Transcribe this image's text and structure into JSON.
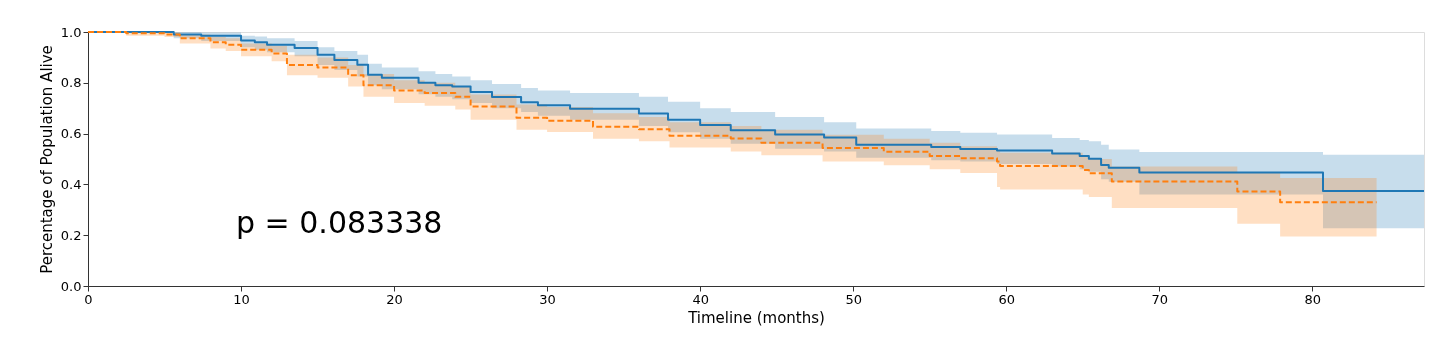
{
  "chart_data": {
    "type": "step",
    "xlabel": "Timeline (months)",
    "ylabel": "Percentage of Population Alive",
    "annotations": [
      "p = 0.083338"
    ],
    "xlim": [
      0,
      87.3
    ],
    "xticks": [
      0,
      10,
      20,
      30,
      40,
      50,
      60,
      70,
      80
    ],
    "ylim": [
      0,
      1
    ],
    "yticks": [
      {
        "value": 0,
        "label": "0.0"
      },
      {
        "value": 0.2,
        "label": "0.2"
      },
      {
        "value": 0.4,
        "label": "0.4"
      },
      {
        "value": 0.6,
        "label": "0.6"
      },
      {
        "value": 0.8,
        "label": "0.8"
      },
      {
        "value": 1,
        "label": "1.0"
      }
    ],
    "grid": false,
    "series": [
      {
        "color": "#1f77b4",
        "line_style": "solid",
        "x": [
          0,
          5.6,
          7.4,
          10,
          10.9,
          11.7,
          13.5,
          15,
          16.1,
          17.6,
          18.3,
          19.2,
          21.6,
          22.7,
          23.8,
          25,
          26.4,
          28.3,
          29.4,
          31.5,
          36,
          37.9,
          40,
          42,
          44.9,
          48.1,
          50.2,
          55.1,
          57,
          59.4,
          63,
          64.8,
          65.4,
          66.2,
          66.7,
          68.7,
          80.7,
          87.3
        ],
        "values": [
          1.0,
          0.99,
          0.985,
          0.967,
          0.96,
          0.95,
          0.937,
          0.91,
          0.89,
          0.871,
          0.832,
          0.82,
          0.8,
          0.79,
          0.785,
          0.764,
          0.744,
          0.723,
          0.712,
          0.698,
          0.679,
          0.655,
          0.634,
          0.613,
          0.596,
          0.585,
          0.556,
          0.547,
          0.539,
          0.533,
          0.522,
          0.512,
          0.501,
          0.476,
          0.466,
          0.447,
          0.374,
          0.374
        ],
        "upper": [
          1.0,
          1.0,
          0.998,
          0.985,
          0.982,
          0.975,
          0.965,
          0.94,
          0.925,
          0.91,
          0.875,
          0.86,
          0.845,
          0.835,
          0.825,
          0.81,
          0.795,
          0.78,
          0.77,
          0.76,
          0.745,
          0.725,
          0.7,
          0.685,
          0.665,
          0.645,
          0.62,
          0.61,
          0.603,
          0.596,
          0.583,
          0.575,
          0.57,
          0.556,
          0.537,
          0.528,
          0.517,
          0.517
        ],
        "lower": [
          1.0,
          0.975,
          0.965,
          0.94,
          0.93,
          0.92,
          0.905,
          0.87,
          0.85,
          0.825,
          0.79,
          0.775,
          0.755,
          0.745,
          0.735,
          0.72,
          0.7,
          0.685,
          0.67,
          0.655,
          0.63,
          0.605,
          0.58,
          0.56,
          0.54,
          0.53,
          0.505,
          0.495,
          0.49,
          0.48,
          0.47,
          0.46,
          0.45,
          0.42,
          0.41,
          0.36,
          0.227,
          0.227
        ]
      },
      {
        "color": "#ff7f0e",
        "line_style": "dashed",
        "x": [
          0,
          2.5,
          5,
          6,
          8,
          9,
          10,
          12,
          13,
          15,
          17,
          18,
          20,
          22,
          24,
          25,
          28,
          30,
          33,
          36,
          38,
          42,
          44,
          48,
          52,
          55,
          57,
          59.4,
          59.6,
          65,
          65.4,
          66.9,
          75.1,
          77.9,
          84.2
        ],
        "values": [
          1.0,
          0.995,
          0.99,
          0.975,
          0.96,
          0.95,
          0.93,
          0.915,
          0.87,
          0.86,
          0.83,
          0.79,
          0.77,
          0.76,
          0.745,
          0.707,
          0.662,
          0.651,
          0.627,
          0.617,
          0.592,
          0.581,
          0.564,
          0.543,
          0.529,
          0.512,
          0.503,
          0.49,
          0.472,
          0.457,
          0.444,
          0.411,
          0.372,
          0.33,
          0.33
        ],
        "upper": [
          1.0,
          1.0,
          0.998,
          0.99,
          0.98,
          0.975,
          0.955,
          0.945,
          0.91,
          0.9,
          0.87,
          0.835,
          0.81,
          0.8,
          0.785,
          0.754,
          0.715,
          0.705,
          0.68,
          0.665,
          0.645,
          0.63,
          0.615,
          0.595,
          0.58,
          0.564,
          0.55,
          0.535,
          0.525,
          0.51,
          0.5,
          0.47,
          0.447,
          0.425,
          0.425
        ],
        "lower": [
          1.0,
          0.985,
          0.98,
          0.955,
          0.935,
          0.925,
          0.905,
          0.885,
          0.83,
          0.82,
          0.785,
          0.745,
          0.72,
          0.71,
          0.695,
          0.655,
          0.615,
          0.606,
          0.58,
          0.57,
          0.545,
          0.53,
          0.515,
          0.49,
          0.475,
          0.46,
          0.445,
          0.39,
          0.38,
          0.36,
          0.35,
          0.307,
          0.245,
          0.195,
          0.195
        ]
      }
    ]
  }
}
